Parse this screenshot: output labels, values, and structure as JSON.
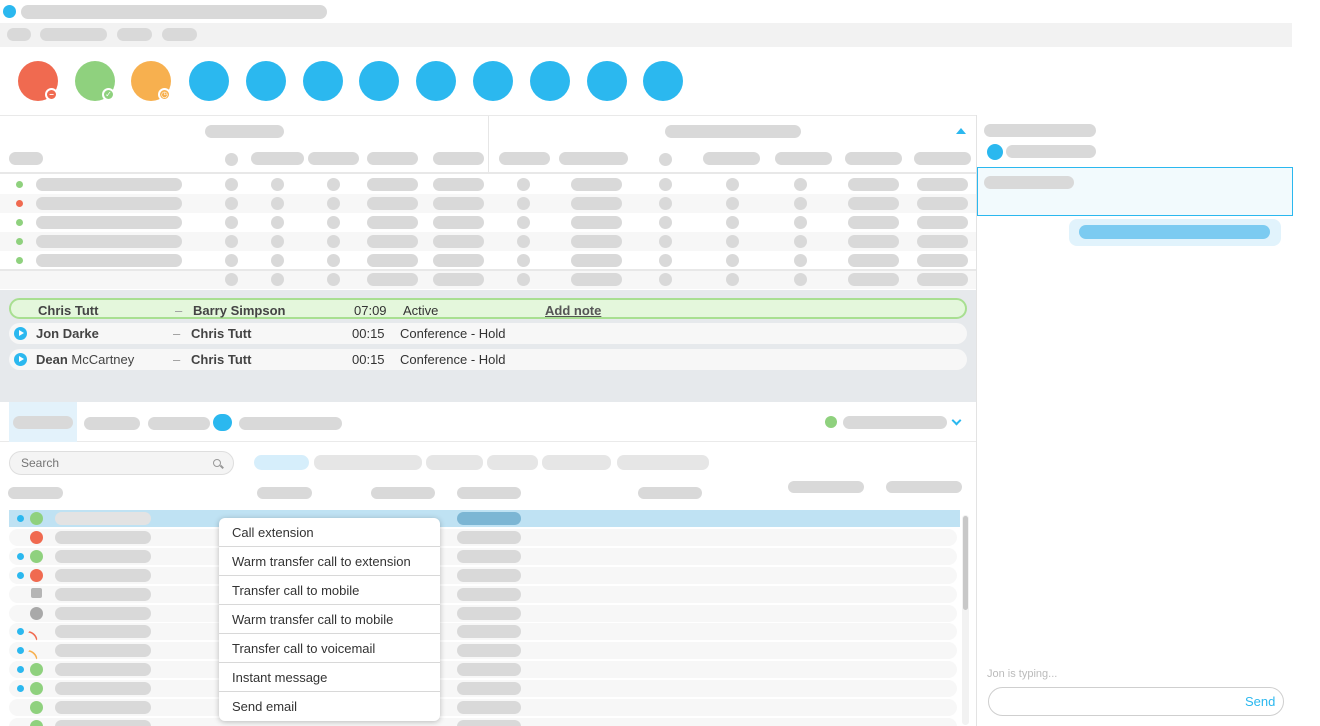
{
  "colors": {
    "accent": "#2bb8ef",
    "dnd": "#f06a50",
    "available": "#8fd17e",
    "away": "#f7b04f",
    "active_call_bg": "#e4f7dc",
    "active_call_border": "#a8df91"
  },
  "toolbar": {
    "status_buttons": [
      {
        "icon": "dnd-status-icon",
        "color": "#f06a50",
        "badge": "minus-icon"
      },
      {
        "icon": "available-status-icon",
        "color": "#8fd17e",
        "badge": "check-icon"
      },
      {
        "icon": "away-status-icon",
        "color": "#f7b04f",
        "badge": "clock-icon"
      }
    ],
    "action_button_count": 9
  },
  "calls": [
    {
      "from": "Chris Tutt",
      "from_first": "",
      "from_last": "",
      "separator": "–",
      "to": "Barry Simpson",
      "duration": "07:09",
      "status": "Active",
      "note_link": "Add note",
      "active": true
    },
    {
      "from": "Jon Darke",
      "from_first": "",
      "from_last": "",
      "separator": "–",
      "to": "Chris Tutt",
      "duration": "00:15",
      "status": "Conference - Hold",
      "note_link": "",
      "active": false
    },
    {
      "from": "",
      "from_first": "Dean",
      "from_last": "McCartney",
      "separator": "–",
      "to": "Chris Tutt",
      "duration": "00:15",
      "status": "Conference - Hold",
      "note_link": "",
      "active": false
    }
  ],
  "search": {
    "placeholder": "Search",
    "value": ""
  },
  "context_menu": {
    "items": [
      "Call extension",
      "Warm transfer call to extension",
      "Transfer call to mobile",
      "Warm transfer call to mobile",
      "Transfer call to voicemail",
      "Instant message",
      "Send email"
    ]
  },
  "chat": {
    "typing_indicator": "Jon is typing...",
    "input_placeholder": "",
    "send_label": "Send"
  }
}
